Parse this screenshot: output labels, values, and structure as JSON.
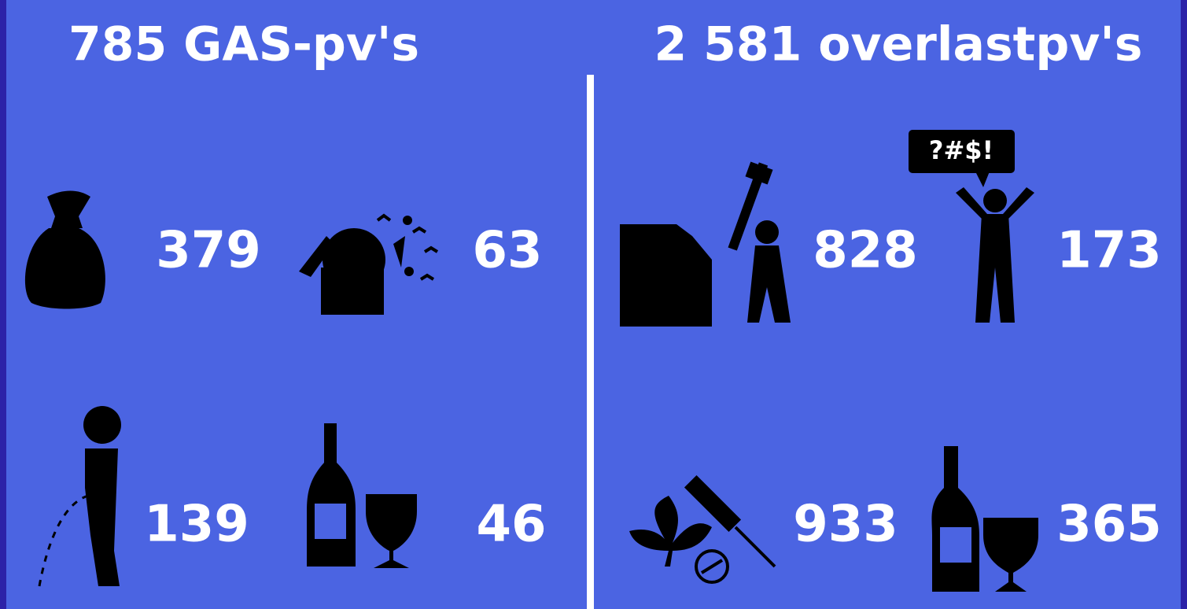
{
  "panels": [
    {
      "title": "785 GAS-pv's",
      "items": [
        {
          "value": 379
        },
        {
          "value": 63
        },
        {
          "value": 139
        },
        {
          "value": 46
        }
      ]
    },
    {
      "title": "2 581 overlastpv's",
      "items": [
        {
          "value": 828
        },
        {
          "value": 173,
          "speech": "?#$!"
        },
        {
          "value": 933
        },
        {
          "value": 365
        }
      ]
    }
  ]
}
